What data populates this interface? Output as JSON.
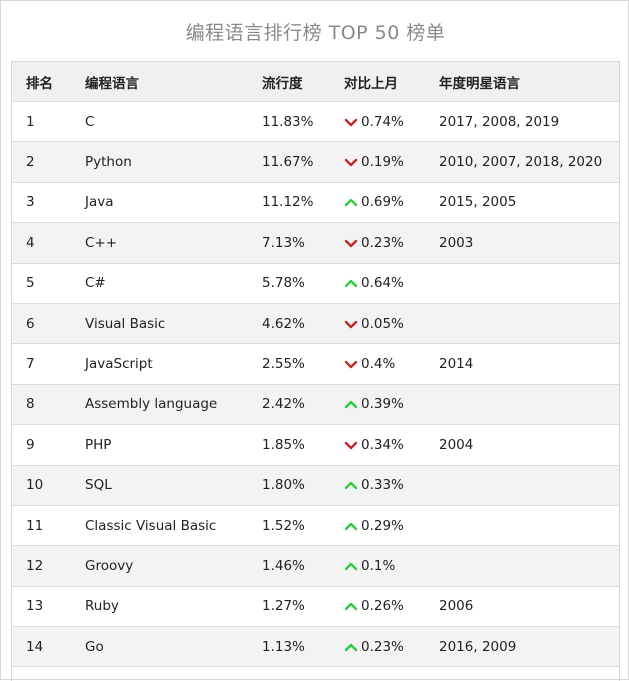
{
  "title": "编程语言排行榜 TOP 50 榜单",
  "colors": {
    "down": "#c0282e",
    "up": "#2ecc40",
    "header_bg": "#f0f0f0",
    "alt_bg": "#f3f3f3"
  },
  "headers": {
    "rank": "排名",
    "lang": "编程语言",
    "pop": "流行度",
    "chg": "对比上月",
    "year": "年度明星语言"
  },
  "rows": [
    {
      "rank": "1",
      "lang": "C",
      "pop": "11.83%",
      "dir": "down",
      "chg": "0.74%",
      "year": "2017, 2008, 2019"
    },
    {
      "rank": "2",
      "lang": "Python",
      "pop": "11.67%",
      "dir": "down",
      "chg": "0.19%",
      "year": "2010, 2007, 2018, 2020"
    },
    {
      "rank": "3",
      "lang": "Java",
      "pop": "11.12%",
      "dir": "up",
      "chg": "0.69%",
      "year": "2015, 2005"
    },
    {
      "rank": "4",
      "lang": "C++",
      "pop": "7.13%",
      "dir": "down",
      "chg": "0.23%",
      "year": "2003"
    },
    {
      "rank": "5",
      "lang": "C#",
      "pop": "5.78%",
      "dir": "up",
      "chg": "0.64%",
      "year": ""
    },
    {
      "rank": "6",
      "lang": "Visual Basic",
      "pop": "4.62%",
      "dir": "down",
      "chg": "0.05%",
      "year": ""
    },
    {
      "rank": "7",
      "lang": "JavaScript",
      "pop": "2.55%",
      "dir": "down",
      "chg": "0.4%",
      "year": "2014"
    },
    {
      "rank": "8",
      "lang": "Assembly language",
      "pop": "2.42%",
      "dir": "up",
      "chg": "0.39%",
      "year": ""
    },
    {
      "rank": "9",
      "lang": "PHP",
      "pop": "1.85%",
      "dir": "down",
      "chg": "0.34%",
      "year": "2004"
    },
    {
      "rank": "10",
      "lang": "SQL",
      "pop": "1.80%",
      "dir": "up",
      "chg": "0.33%",
      "year": ""
    },
    {
      "rank": "11",
      "lang": "Classic Visual Basic",
      "pop": "1.52%",
      "dir": "up",
      "chg": "0.29%",
      "year": ""
    },
    {
      "rank": "12",
      "lang": "Groovy",
      "pop": "1.46%",
      "dir": "up",
      "chg": "0.1%",
      "year": ""
    },
    {
      "rank": "13",
      "lang": "Ruby",
      "pop": "1.27%",
      "dir": "up",
      "chg": "0.26%",
      "year": "2006"
    },
    {
      "rank": "14",
      "lang": "Go",
      "pop": "1.13%",
      "dir": "up",
      "chg": "0.23%",
      "year": "2016, 2009"
    }
  ]
}
